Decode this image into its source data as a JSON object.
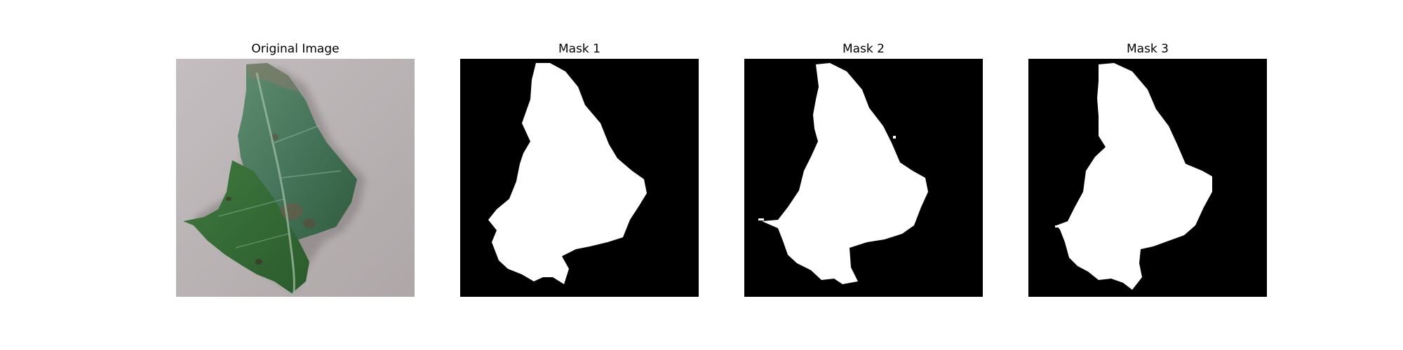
{
  "figure": {
    "panels": [
      {
        "title": "Original Image",
        "kind": "photo"
      },
      {
        "title": "Mask 1",
        "kind": "mask"
      },
      {
        "title": "Mask 2",
        "kind": "mask"
      },
      {
        "title": "Mask 3",
        "kind": "mask"
      }
    ],
    "colors": {
      "background": "#ffffff",
      "mask_background": "#000000",
      "mask_foreground": "#ffffff",
      "surface": "#b9b3b4",
      "leaf_dark": "#2f5a3a",
      "leaf_light": "#5b8b6c",
      "shadow": "#8e8786"
    }
  }
}
